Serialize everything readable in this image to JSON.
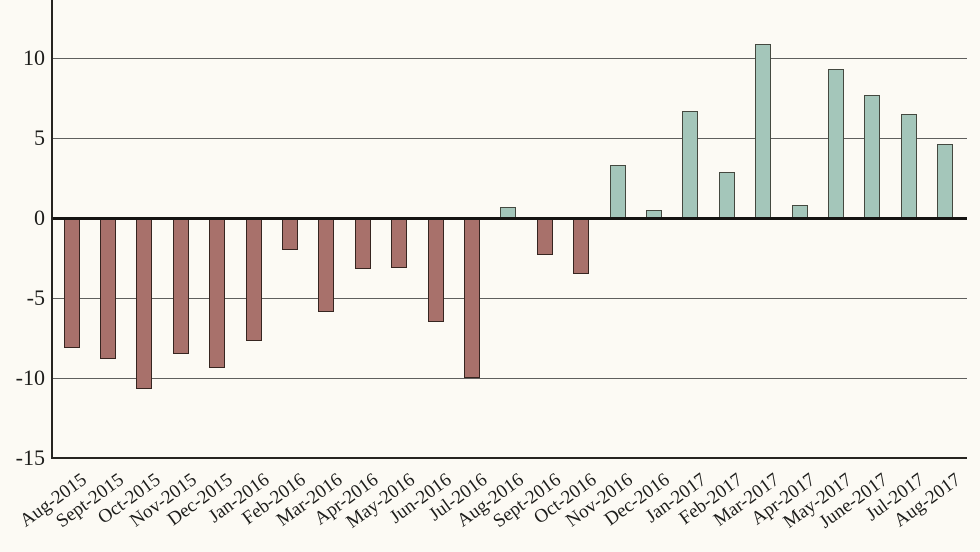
{
  "chart_data": {
    "type": "bar",
    "title": "",
    "xlabel": "",
    "ylabel": "",
    "categories": [
      "Aug-2015",
      "Sept-2015",
      "Oct-2015",
      "Nov-2015",
      "Dec-2015",
      "Jan-2016",
      "Feb-2016",
      "Mar-2016",
      "Apr-2016",
      "May-2016",
      "Jun-2016",
      "Jul-2016",
      "Aug-2016",
      "Sept-2016",
      "Oct-2016",
      "Nov-2016",
      "Dec-2016",
      "Jan-2017",
      "Feb-2017",
      "Mar-2017",
      "Apr-2017",
      "May-2017",
      "June-2017",
      "Jul-2017",
      "Aug-2017"
    ],
    "values": [
      -8.1,
      -8.8,
      -10.7,
      -8.5,
      -9.4,
      -7.7,
      -2.0,
      -5.9,
      -3.2,
      -3.1,
      -6.5,
      -10.0,
      0.7,
      -2.3,
      -3.5,
      3.3,
      0.5,
      6.7,
      2.9,
      10.9,
      0.8,
      9.3,
      7.7,
      6.5,
      4.6
    ],
    "ytick_values": [
      10,
      5,
      0,
      -5,
      -10,
      -15
    ],
    "ytick_labels": [
      "10",
      "5",
      "0",
      "-5",
      "-10",
      "-15"
    ],
    "ylim": [
      -15,
      13.6
    ],
    "grid": true,
    "legend": false,
    "colors": {
      "positive_fill": "#A4C6BA",
      "positive_border": "#44483F",
      "negative_fill": "#A8716B",
      "negative_border": "#362520",
      "gridline": "#5F5F5D",
      "zero_line": "#161412",
      "axis_line": "#262420",
      "background": "#FCFAF4",
      "text": "#1C1C1A"
    }
  }
}
